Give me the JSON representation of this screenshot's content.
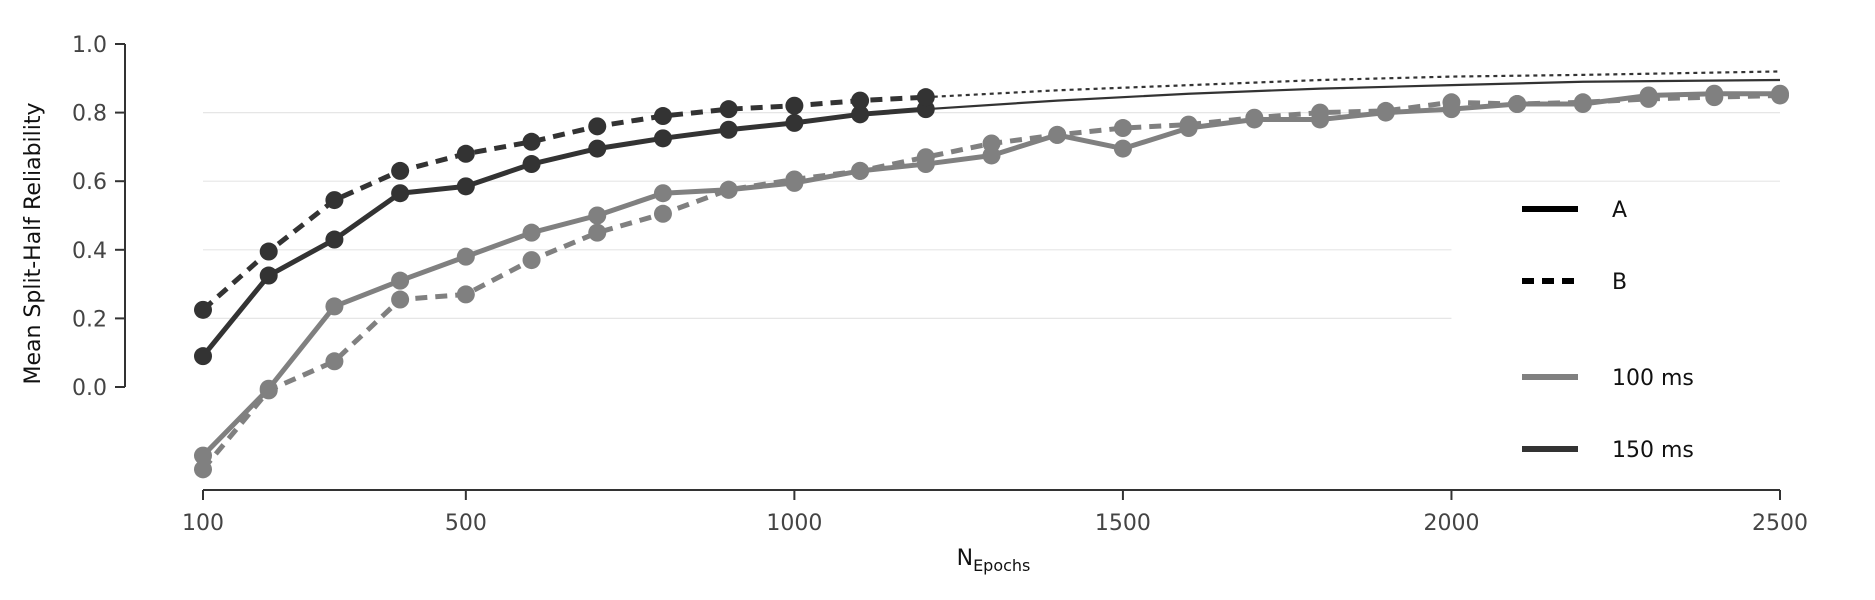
{
  "chart_data": {
    "type": "line",
    "title": "",
    "ylabel": "Mean Split-Half Reliability",
    "xlabel_main": "N",
    "xlabel_sub": "Epochs",
    "xlim": [
      100,
      2500
    ],
    "ylim": [
      -0.3,
      1.0
    ],
    "xticks": [
      100,
      500,
      1000,
      1500,
      2000,
      2500
    ],
    "yticks": [
      0.0,
      0.2,
      0.4,
      0.6,
      0.8,
      1.0
    ],
    "xtick_labels": [
      "100",
      "500",
      "1000",
      "1500",
      "2000",
      "2500"
    ],
    "ytick_labels": [
      "0.0",
      "0.2",
      "0.4",
      "0.6",
      "0.8",
      "1.0"
    ],
    "gridlines_y": [
      0.2,
      0.4,
      0.6,
      0.8
    ],
    "legend_placement": "right",
    "legend": [
      {
        "label": "A",
        "style": "solid",
        "color": "#000000"
      },
      {
        "label": "B",
        "style": "dashed",
        "color": "#000000"
      },
      {
        "label": "100 ms",
        "style": "solid",
        "color": "#808080"
      },
      {
        "label": "150 ms",
        "style": "solid",
        "color": "#333333"
      }
    ],
    "colors": {
      "gray_100ms": "#808080",
      "dark_150ms": "#333333"
    },
    "series": [
      {
        "condition": "A",
        "duration": "150 ms",
        "color": "#333333",
        "dash": "solid",
        "x": [
          100,
          200,
          300,
          400,
          500,
          600,
          700,
          800,
          900,
          1000,
          1100,
          1200
        ],
        "y": [
          0.09,
          0.325,
          0.43,
          0.565,
          0.585,
          0.65,
          0.695,
          0.725,
          0.75,
          0.77,
          0.795,
          0.81
        ],
        "fit": {
          "x": [
            1200,
            1400,
            1600,
            1800,
            2000,
            2200,
            2500
          ],
          "y": [
            0.81,
            0.835,
            0.855,
            0.87,
            0.88,
            0.89,
            0.895
          ]
        }
      },
      {
        "condition": "B",
        "duration": "150 ms",
        "color": "#333333",
        "dash": "dashed",
        "x": [
          100,
          200,
          300,
          400,
          500,
          600,
          700,
          800,
          900,
          1000,
          1100,
          1200
        ],
        "y": [
          0.225,
          0.395,
          0.545,
          0.63,
          0.68,
          0.715,
          0.76,
          0.79,
          0.81,
          0.82,
          0.835,
          0.845
        ],
        "fit": {
          "x": [
            1200,
            1400,
            1600,
            1800,
            2000,
            2200,
            2500
          ],
          "y": [
            0.845,
            0.865,
            0.88,
            0.895,
            0.905,
            0.91,
            0.92
          ]
        }
      },
      {
        "condition": "A",
        "duration": "100 ms",
        "color": "#808080",
        "dash": "solid",
        "x": [
          100,
          200,
          300,
          400,
          500,
          600,
          700,
          800,
          900,
          1000,
          1100,
          1200,
          1300,
          1400,
          1500,
          1600,
          1700,
          1800,
          1900,
          2000,
          2100,
          2200,
          2300,
          2400,
          2500
        ],
        "y": [
          -0.2,
          -0.005,
          0.235,
          0.31,
          0.38,
          0.45,
          0.5,
          0.565,
          0.575,
          0.595,
          0.63,
          0.65,
          0.675,
          0.735,
          0.695,
          0.755,
          0.78,
          0.78,
          0.8,
          0.81,
          0.825,
          0.825,
          0.85,
          0.855,
          0.855
        ]
      },
      {
        "condition": "B",
        "duration": "100 ms",
        "color": "#808080",
        "dash": "dashed",
        "x": [
          100,
          200,
          300,
          400,
          500,
          600,
          700,
          800,
          900,
          1000,
          1100,
          1200,
          1300,
          1400,
          1500,
          1600,
          1700,
          1800,
          1900,
          2000,
          2100,
          2200,
          2300,
          2400,
          2500
        ],
        "y": [
          -0.24,
          -0.01,
          0.075,
          0.255,
          0.27,
          0.37,
          0.45,
          0.505,
          0.575,
          0.605,
          0.63,
          0.67,
          0.71,
          0.735,
          0.755,
          0.765,
          0.785,
          0.8,
          0.805,
          0.83,
          0.825,
          0.83,
          0.84,
          0.845,
          0.85
        ]
      }
    ]
  }
}
